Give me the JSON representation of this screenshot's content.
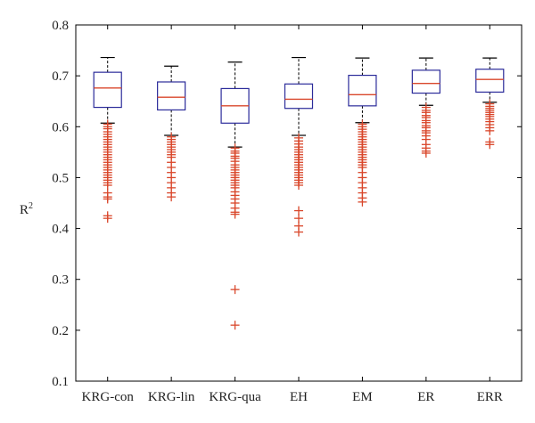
{
  "chart_data": {
    "type": "box",
    "title": "",
    "xlabel": "",
    "ylabel": "R",
    "ylabel_superscript": "2",
    "ylim": [
      0.1,
      0.8
    ],
    "yticks": [
      0.1,
      0.2,
      0.3,
      0.4,
      0.5,
      0.6,
      0.7,
      0.8
    ],
    "ytick_labels": [
      "0.1",
      "0.2",
      "0.3",
      "0.4",
      "0.5",
      "0.6",
      "0.7",
      "0.8"
    ],
    "categories": [
      "KRG-con",
      "KRG-lin",
      "KRG-qua",
      "EH",
      "EM",
      "ER",
      "ERR"
    ],
    "grid": false,
    "colors": {
      "box": "#2b2b9a",
      "median": "#d9472b",
      "whisker": "#000000",
      "outlier": "#d9472b",
      "axis": "#000000"
    },
    "boxes": [
      {
        "category": "KRG-con",
        "whisker_low": 0.607,
        "q1": 0.638,
        "median": 0.676,
        "q3": 0.707,
        "whisker_high": 0.736,
        "outliers": [
          0.605,
          0.6,
          0.596,
          0.59,
          0.585,
          0.58,
          0.575,
          0.57,
          0.565,
          0.56,
          0.555,
          0.55,
          0.545,
          0.54,
          0.535,
          0.53,
          0.525,
          0.52,
          0.515,
          0.51,
          0.505,
          0.5,
          0.495,
          0.49,
          0.485,
          0.47,
          0.462,
          0.458,
          0.425,
          0.42
        ]
      },
      {
        "category": "KRG-lin",
        "whisker_low": 0.583,
        "q1": 0.633,
        "median": 0.658,
        "q3": 0.688,
        "whisker_high": 0.719,
        "outliers": [
          0.58,
          0.575,
          0.57,
          0.565,
          0.56,
          0.555,
          0.55,
          0.545,
          0.54,
          0.53,
          0.52,
          0.51,
          0.5,
          0.49,
          0.48,
          0.47,
          0.462
        ]
      },
      {
        "category": "KRG-qua",
        "whisker_low": 0.56,
        "q1": 0.607,
        "median": 0.641,
        "q3": 0.675,
        "whisker_high": 0.727,
        "outliers": [
          0.558,
          0.552,
          0.548,
          0.542,
          0.538,
          0.532,
          0.525,
          0.52,
          0.515,
          0.51,
          0.505,
          0.5,
          0.495,
          0.49,
          0.485,
          0.48,
          0.472,
          0.465,
          0.458,
          0.45,
          0.44,
          0.432,
          0.428,
          0.28,
          0.21
        ]
      },
      {
        "category": "EH",
        "whisker_low": 0.583,
        "q1": 0.636,
        "median": 0.654,
        "q3": 0.684,
        "whisker_high": 0.736,
        "outliers": [
          0.578,
          0.572,
          0.566,
          0.56,
          0.555,
          0.55,
          0.545,
          0.54,
          0.535,
          0.53,
          0.525,
          0.52,
          0.515,
          0.51,
          0.505,
          0.5,
          0.495,
          0.49,
          0.485,
          0.435,
          0.42,
          0.405,
          0.393
        ]
      },
      {
        "category": "EM",
        "whisker_low": 0.608,
        "q1": 0.641,
        "median": 0.663,
        "q3": 0.701,
        "whisker_high": 0.735,
        "outliers": [
          0.605,
          0.6,
          0.595,
          0.59,
          0.585,
          0.58,
          0.575,
          0.57,
          0.565,
          0.56,
          0.555,
          0.55,
          0.545,
          0.54,
          0.535,
          0.53,
          0.525,
          0.52,
          0.51,
          0.5,
          0.49,
          0.48,
          0.47,
          0.46,
          0.452
        ]
      },
      {
        "category": "ER",
        "whisker_low": 0.642,
        "q1": 0.666,
        "median": 0.685,
        "q3": 0.711,
        "whisker_high": 0.735,
        "outliers": [
          0.638,
          0.632,
          0.628,
          0.622,
          0.618,
          0.612,
          0.608,
          0.602,
          0.598,
          0.592,
          0.588,
          0.582,
          0.575,
          0.565,
          0.558,
          0.552,
          0.548
        ]
      },
      {
        "category": "ERR",
        "whisker_low": 0.648,
        "q1": 0.668,
        "median": 0.693,
        "q3": 0.713,
        "whisker_high": 0.735,
        "outliers": [
          0.645,
          0.64,
          0.636,
          0.632,
          0.628,
          0.624,
          0.62,
          0.615,
          0.61,
          0.604,
          0.598,
          0.592,
          0.57,
          0.565
        ]
      }
    ]
  }
}
